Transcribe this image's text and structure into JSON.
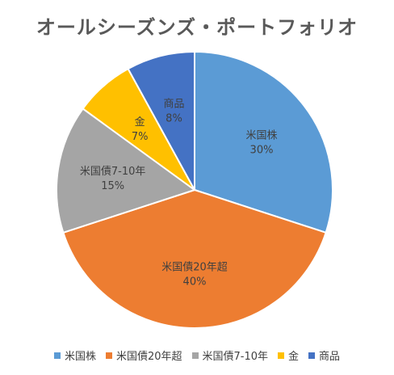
{
  "chart_data": {
    "type": "pie",
    "title": "オールシーズンズ・ポートフォリオ",
    "categories": [
      "米国株",
      "米国債20年超",
      "米国債7-10年",
      "金",
      "商品"
    ],
    "values": [
      30,
      40,
      15,
      7,
      8
    ],
    "value_labels": [
      "30%",
      "40%",
      "15%",
      "7%",
      "8%"
    ],
    "colors": [
      "#5B9BD5",
      "#ED7D31",
      "#A5A5A5",
      "#FFC000",
      "#4472C4"
    ],
    "start": "12 o'clock",
    "direction": "clockwise",
    "legend_position": "bottom"
  }
}
